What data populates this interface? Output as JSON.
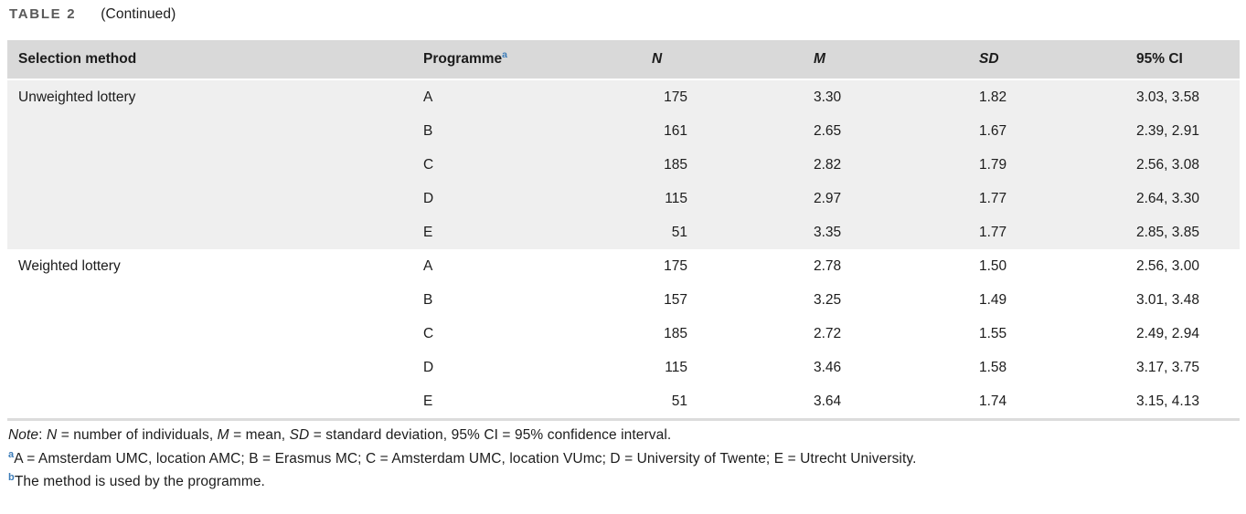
{
  "title": {
    "label": "TABLE 2",
    "continued": "(Continued)"
  },
  "colors": {
    "header_bg": "#d9d9d9",
    "shaded_group_bg": "#efefef",
    "footnote_marker_blue": "#3c7cb8",
    "title_grey": "#595959",
    "text": "#1c1c1c"
  },
  "table": {
    "headers": {
      "selection_method": "Selection method",
      "programme": "Programme",
      "programme_marker": "a",
      "n": "N",
      "m": "M",
      "sd": "SD",
      "ci": "95% CI"
    },
    "groups": [
      {
        "method": "Unweighted lottery",
        "rows": [
          {
            "programme": "A",
            "n": "175",
            "m": "3.30",
            "sd": "1.82",
            "ci": "3.03, 3.58"
          },
          {
            "programme": "B",
            "n": "161",
            "m": "2.65",
            "sd": "1.67",
            "ci": "2.39, 2.91"
          },
          {
            "programme": "C",
            "n": "185",
            "m": "2.82",
            "sd": "1.79",
            "ci": "2.56, 3.08"
          },
          {
            "programme": "D",
            "n": "115",
            "m": "2.97",
            "sd": "1.77",
            "ci": "2.64, 3.30"
          },
          {
            "programme": "E",
            "n": "51",
            "m": "3.35",
            "sd": "1.77",
            "ci": "2.85, 3.85"
          }
        ]
      },
      {
        "method": "Weighted lottery",
        "rows": [
          {
            "programme": "A",
            "n": "175",
            "m": "2.78",
            "sd": "1.50",
            "ci": "2.56, 3.00"
          },
          {
            "programme": "B",
            "n": "157",
            "m": "3.25",
            "sd": "1.49",
            "ci": "3.01, 3.48"
          },
          {
            "programme": "C",
            "n": "185",
            "m": "2.72",
            "sd": "1.55",
            "ci": "2.49, 2.94"
          },
          {
            "programme": "D",
            "n": "115",
            "m": "3.46",
            "sd": "1.58",
            "ci": "3.17, 3.75"
          },
          {
            "programme": "E",
            "n": "51",
            "m": "3.64",
            "sd": "1.74",
            "ci": "3.15, 4.13"
          }
        ]
      }
    ]
  },
  "footnotes": {
    "note_label": "Note",
    "note_p0": ": ",
    "n_symbol": "N",
    "note_p1": " = number of individuals, ",
    "m_symbol": "M",
    "note_p2": " = mean, ",
    "sd_symbol": "SD",
    "note_p3": " = standard deviation, 95% CI = 95% confidence interval.",
    "a_marker": "a",
    "a_text": "A = Amsterdam UMC, location AMC; B = Erasmus MC; C = Amsterdam UMC, location VUmc; D = University of Twente; E = Utrecht University.",
    "b_marker": "b",
    "b_text": "The method is used by the programme."
  }
}
